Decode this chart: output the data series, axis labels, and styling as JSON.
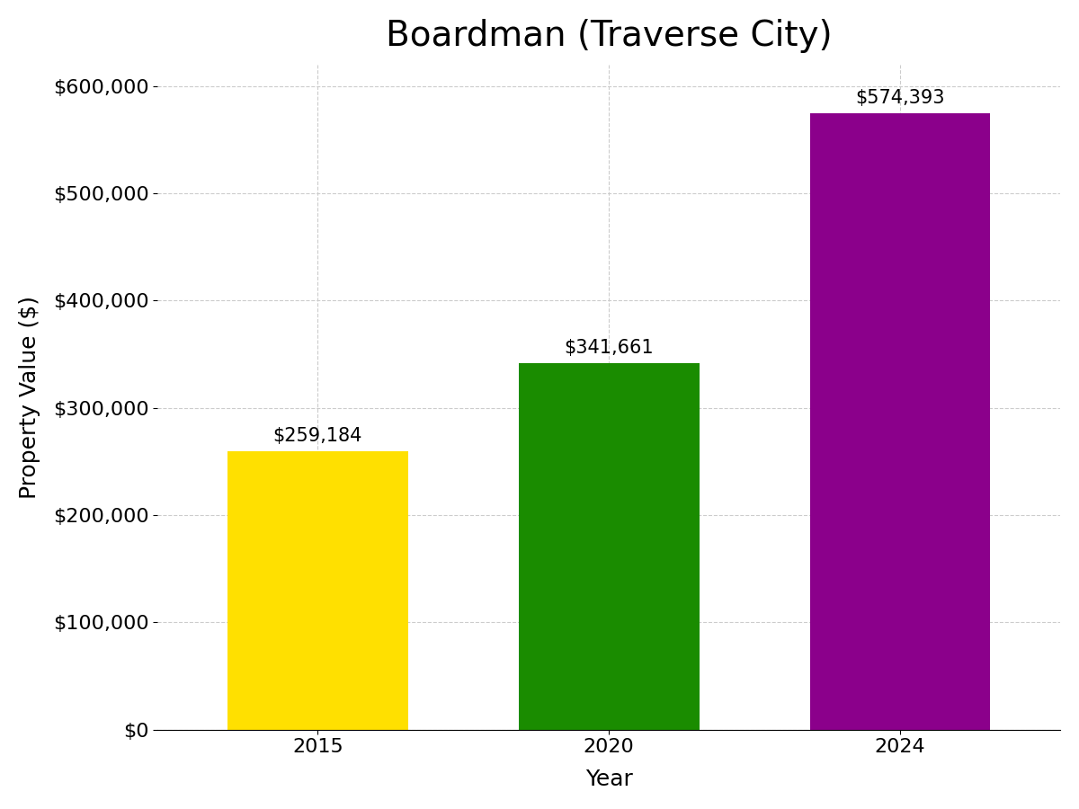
{
  "title": "Boardman (Traverse City)",
  "xlabel": "Year",
  "ylabel": "Property Value ($)",
  "categories": [
    "2015",
    "2020",
    "2024"
  ],
  "values": [
    259184,
    341661,
    574393
  ],
  "bar_colors": [
    "#FFE000",
    "#1A8C00",
    "#8B008B"
  ],
  "ylim": [
    0,
    620000
  ],
  "yticks": [
    0,
    100000,
    200000,
    300000,
    400000,
    500000,
    600000
  ],
  "title_fontsize": 28,
  "axis_label_fontsize": 18,
  "tick_fontsize": 16,
  "annotation_fontsize": 15,
  "background_color": "#ffffff",
  "bar_width": 0.62
}
